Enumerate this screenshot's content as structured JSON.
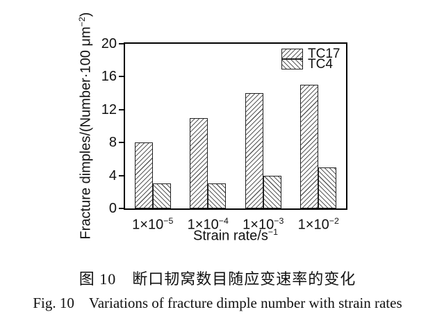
{
  "figure": {
    "caption_zh": "图 10　断口韧窝数目随应变速率的变化",
    "caption_en": "Fig. 10　Variations of fracture dimple number with strain rates"
  },
  "chart_data": {
    "type": "bar",
    "title": "",
    "categories": [
      "1×10−5",
      "1×10−4",
      "1×10−3",
      "1×10−2"
    ],
    "x_values": [
      1e-05,
      0.0001,
      0.001,
      0.01
    ],
    "categories_display": [
      {
        "base": "1×10",
        "exp": "−5"
      },
      {
        "base": "1×10",
        "exp": "−4"
      },
      {
        "base": "1×10",
        "exp": "−3"
      },
      {
        "base": "1×10",
        "exp": "−2"
      }
    ],
    "series": [
      {
        "name": "TC17",
        "hatch": "forward-diagonal",
        "values": [
          8,
          11,
          14,
          15
        ]
      },
      {
        "name": "TC4",
        "hatch": "backward-diagonal",
        "values": [
          3,
          3,
          4,
          5
        ]
      }
    ],
    "ylabel": {
      "pre": "Fracture dimples/(Number·100 μm",
      "sup": "−2",
      "post": ")"
    },
    "xlabel": {
      "pre": "Strain rate/s",
      "sup": "−1",
      "post": ""
    },
    "ylim": [
      0,
      20
    ],
    "yticks": [
      0,
      4,
      8,
      12,
      16,
      20
    ],
    "grid": false,
    "legend_position": "top-right-inside",
    "bar_fill": "#ffffff",
    "hatch_color": "#5a5a5a",
    "axis_color": "#000000",
    "background": "#ffffff"
  }
}
